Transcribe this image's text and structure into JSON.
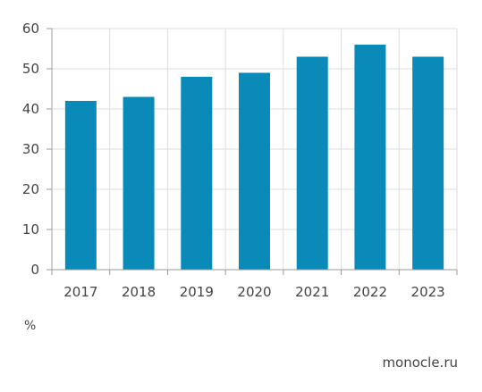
{
  "chart_data": {
    "type": "bar",
    "categories": [
      "2017",
      "2018",
      "2019",
      "2020",
      "2021",
      "2022",
      "2023"
    ],
    "values": [
      42,
      43,
      48,
      49,
      53,
      56,
      53
    ],
    "ylim": [
      0,
      60
    ],
    "yticks": [
      0,
      10,
      20,
      30,
      40,
      50,
      60
    ],
    "grid": true,
    "bar_color": "#0a8ab8",
    "grid_color": "#dedede",
    "axis_color": "#9a9a9a"
  },
  "unit_label": "%",
  "source": "monocle.ru"
}
